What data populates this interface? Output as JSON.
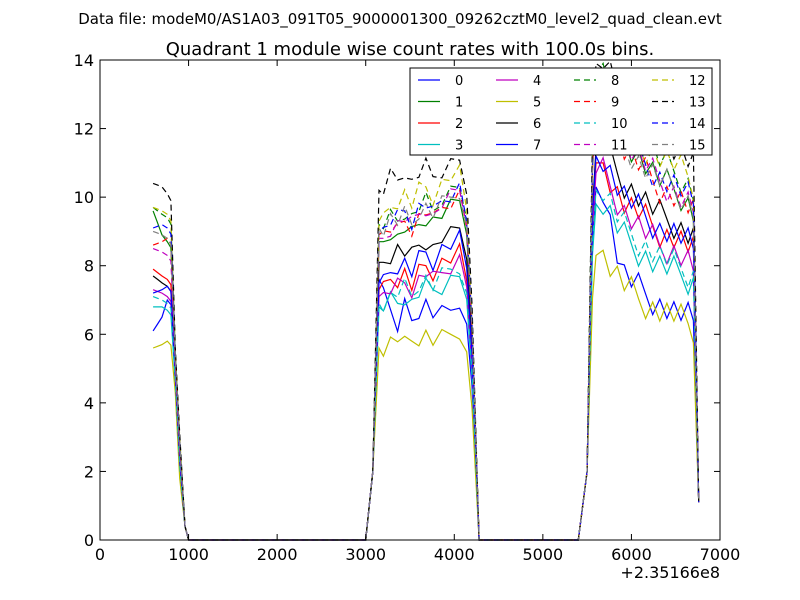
{
  "header": {
    "data_file": "Data file: modeM0/AS1A03_091T05_9000001300_09262cztM0_level2_quad_clean.evt"
  },
  "chart_data": {
    "type": "line",
    "title": "Quadrant 1 module wise count rates with 100.0s bins.",
    "xlabel": "",
    "ylabel": "",
    "x_offset_label": "+2.35166e8",
    "xlim": [
      0,
      7000
    ],
    "ylim": [
      0,
      14
    ],
    "xticks": [
      0,
      1000,
      2000,
      3000,
      4000,
      5000,
      6000,
      7000
    ],
    "yticks": [
      0,
      2,
      4,
      6,
      8,
      10,
      12,
      14
    ],
    "legend": {
      "position": "top-right",
      "columns": 4
    },
    "series": [
      {
        "name": "0",
        "color": "#0000ff",
        "dash": "solid",
        "values": [
          6.1,
          6.5,
          7.0,
          2.2,
          7.6,
          6.6,
          6.2,
          6.8,
          6.4,
          6.7,
          6.9,
          6.6,
          6.6,
          6.7,
          7.0,
          6.4,
          10.3,
          7.8,
          7.3,
          6.9,
          6.6,
          6.4
        ]
      },
      {
        "name": "1",
        "color": "#008000",
        "dash": "solid",
        "values": [
          9.6,
          8.9,
          8.7,
          2.8,
          8.7,
          9.0,
          8.8,
          9.1,
          8.9,
          9.2,
          9.4,
          9.3,
          9.5,
          9.7,
          9.9,
          8.6,
          12.9,
          11.8,
          11.2,
          10.5,
          10.2,
          9.6
        ]
      },
      {
        "name": "2",
        "color": "#ff0000",
        "dash": "solid",
        "values": [
          7.9,
          7.7,
          7.6,
          2.4,
          7.3,
          7.6,
          7.6,
          7.8,
          7.4,
          7.8,
          8.0,
          7.8,
          8.1,
          8.2,
          8.4,
          7.4,
          11.0,
          9.9,
          9.5,
          9.0,
          8.8,
          8.4
        ]
      },
      {
        "name": "3",
        "color": "#00bfbf",
        "dash": "solid",
        "values": [
          6.8,
          6.8,
          6.7,
          2.1,
          6.8,
          7.0,
          6.9,
          7.1,
          6.9,
          7.2,
          7.4,
          7.3,
          7.4,
          7.6,
          7.8,
          6.8,
          9.8,
          8.9,
          8.4,
          8.0,
          7.8,
          7.5
        ]
      },
      {
        "name": "4",
        "color": "#bf00bf",
        "dash": "solid",
        "values": [
          7.3,
          7.2,
          7.1,
          2.3,
          7.1,
          7.3,
          7.4,
          7.5,
          7.3,
          7.6,
          7.8,
          7.6,
          7.8,
          8.0,
          8.2,
          7.1,
          10.7,
          9.7,
          9.1,
          8.6,
          8.4,
          8.0
        ]
      },
      {
        "name": "5",
        "color": "#bfbf00",
        "dash": "solid",
        "values": [
          5.6,
          5.7,
          5.8,
          1.8,
          5.6,
          5.8,
          5.9,
          5.7,
          5.8,
          5.9,
          6.0,
          5.8,
          5.9,
          6.0,
          6.1,
          5.5,
          8.3,
          7.5,
          7.0,
          6.7,
          6.5,
          6.2
        ]
      },
      {
        "name": "6",
        "color": "#000000",
        "dash": "solid",
        "values": [
          7.7,
          7.5,
          7.4,
          2.5,
          8.1,
          8.3,
          8.5,
          8.4,
          8.3,
          8.6,
          8.7,
          8.5,
          8.8,
          8.9,
          9.1,
          8.0,
          11.4,
          10.5,
          10.0,
          9.5,
          9.2,
          8.8
        ]
      },
      {
        "name": "7",
        "color": "#0000ff",
        "dash": "solid",
        "values": [
          7.2,
          7.3,
          7.4,
          2.3,
          7.5,
          7.8,
          8.0,
          8.1,
          7.8,
          8.2,
          8.4,
          8.1,
          8.5,
          8.6,
          8.8,
          7.7,
          11.2,
          10.1,
          9.6,
          9.1,
          8.9,
          8.5
        ]
      },
      {
        "name": "8",
        "color": "#008000",
        "dash": "dashed",
        "values": [
          9.7,
          9.5,
          9.4,
          2.9,
          9.2,
          9.4,
          9.3,
          9.6,
          9.4,
          9.7,
          9.9,
          9.6,
          10.0,
          10.2,
          10.4,
          9.1,
          13.6,
          12.4,
          11.8,
          11.1,
          10.7,
          10.2
        ]
      },
      {
        "name": "9",
        "color": "#ff0000",
        "dash": "dashed",
        "values": [
          8.6,
          8.7,
          8.8,
          2.7,
          8.9,
          9.1,
          9.0,
          9.3,
          9.1,
          9.4,
          9.6,
          9.3,
          9.7,
          9.9,
          10.1,
          8.8,
          12.7,
          11.5,
          10.9,
          10.3,
          10.0,
          9.5
        ]
      },
      {
        "name": "10",
        "color": "#00bfbf",
        "dash": "dashed",
        "values": [
          7.1,
          7.0,
          6.9,
          2.2,
          6.9,
          7.1,
          7.2,
          7.4,
          7.1,
          7.5,
          7.6,
          7.4,
          7.7,
          7.9,
          8.0,
          7.0,
          10.2,
          9.2,
          8.7,
          8.3,
          8.0,
          7.7
        ]
      },
      {
        "name": "11",
        "color": "#bf00bf",
        "dash": "dashed",
        "values": [
          8.5,
          8.4,
          8.3,
          2.6,
          8.8,
          9.1,
          9.2,
          9.4,
          9.2,
          9.5,
          9.7,
          9.4,
          9.8,
          10.0,
          10.2,
          8.9,
          12.9,
          11.7,
          11.1,
          10.5,
          10.1,
          9.7
        ]
      },
      {
        "name": "12",
        "color": "#bfbf00",
        "dash": "dashed",
        "values": [
          9.7,
          9.6,
          9.5,
          3.0,
          9.3,
          9.7,
          9.9,
          10.1,
          9.8,
          10.2,
          10.3,
          10.0,
          10.4,
          10.6,
          10.7,
          9.4,
          13.2,
          12.1,
          11.5,
          11.2,
          10.9,
          10.4
        ]
      },
      {
        "name": "13",
        "color": "#000000",
        "dash": "dashed",
        "values": [
          10.4,
          10.3,
          10.1,
          3.1,
          10.2,
          10.6,
          10.5,
          10.8,
          10.4,
          10.7,
          10.9,
          10.6,
          10.8,
          11.0,
          11.2,
          9.8,
          13.9,
          12.9,
          12.3,
          11.9,
          11.5,
          11.0
        ]
      },
      {
        "name": "14",
        "color": "#0000ff",
        "dash": "dashed",
        "values": [
          9.1,
          9.2,
          9.1,
          2.8,
          9.0,
          9.3,
          9.4,
          9.6,
          9.3,
          9.7,
          9.8,
          9.5,
          9.9,
          10.1,
          10.3,
          9.0,
          12.8,
          11.7,
          11.1,
          10.6,
          10.3,
          9.8
        ]
      },
      {
        "name": "15",
        "color": "#808080",
        "dash": "dashed",
        "values": [
          9.0,
          8.9,
          8.8,
          2.8,
          9.1,
          9.4,
          9.3,
          9.5,
          9.2,
          9.6,
          9.7,
          9.5,
          9.8,
          10.0,
          10.2,
          8.9,
          12.6,
          11.6,
          11.0,
          10.5,
          10.2,
          9.7
        ]
      }
    ]
  }
}
